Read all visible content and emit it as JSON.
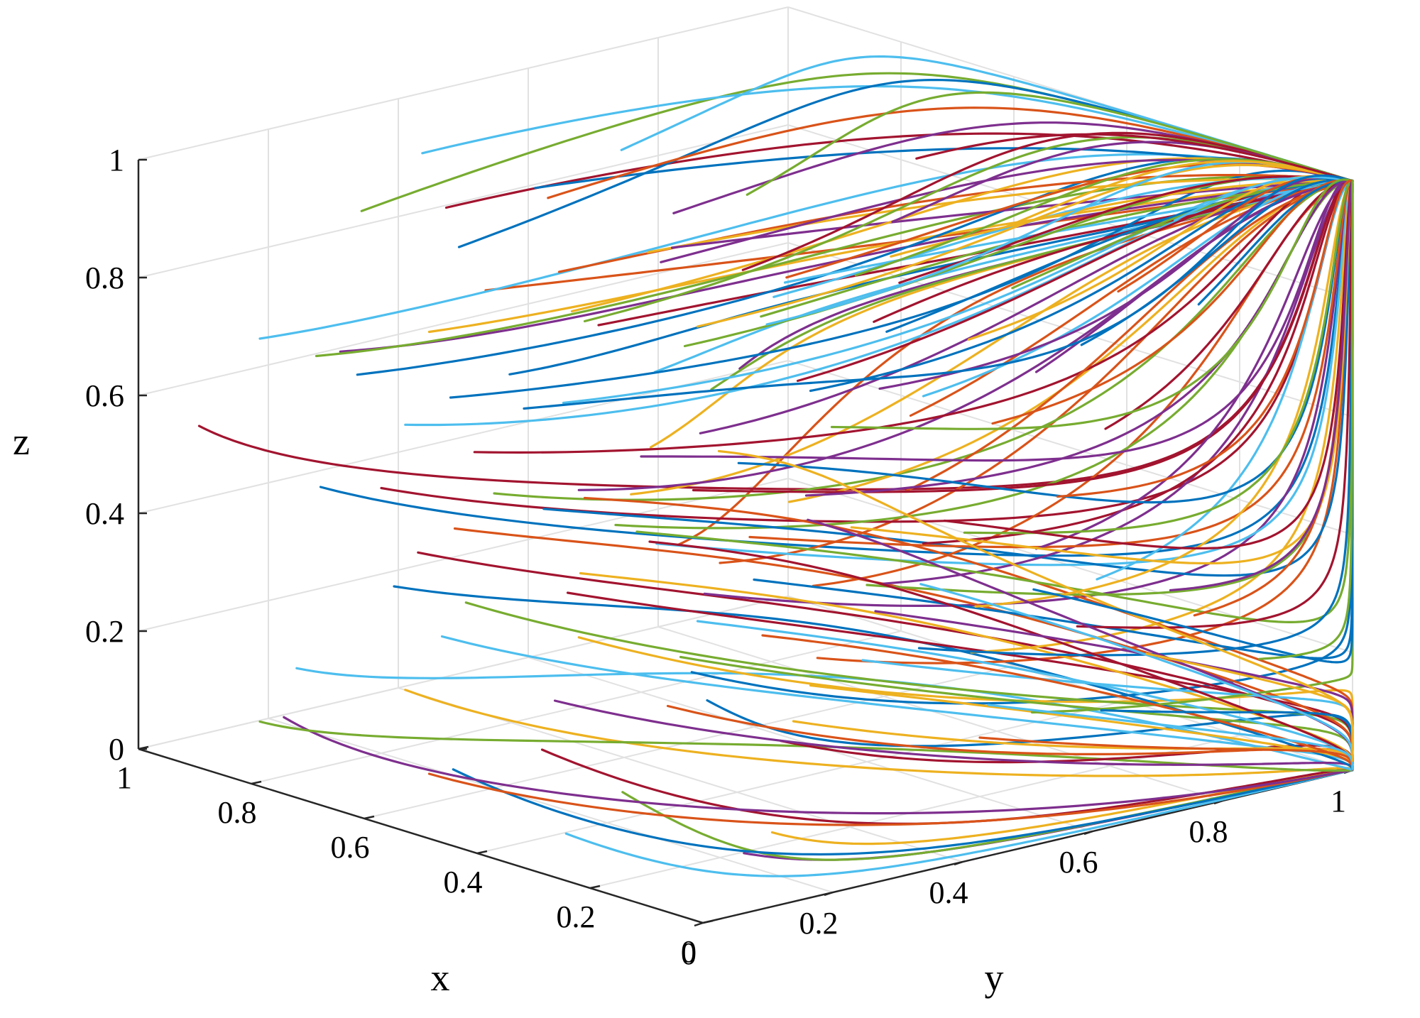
{
  "chart_data": {
    "type": "line",
    "projection": "3d",
    "xlabel": "x",
    "ylabel": "y",
    "zlabel": "z",
    "xlim": [
      0,
      1
    ],
    "ylim": [
      0,
      1
    ],
    "zlim": [
      0,
      1
    ],
    "x_ticks": [
      "0",
      "0.2",
      "0.4",
      "0.6",
      "0.8",
      "1"
    ],
    "y_ticks": [
      "0",
      "0.2",
      "0.4",
      "0.6",
      "0.8",
      "1"
    ],
    "z_ticks": [
      "0",
      "0.2",
      "0.4",
      "0.6",
      "0.8",
      "1"
    ],
    "grid": true,
    "legend": "none",
    "attractors": [
      [
        0,
        1,
        1
      ],
      [
        0,
        1,
        0
      ]
    ],
    "series_colors": [
      "#0072BD",
      "#D95319",
      "#EDB120",
      "#7E2F8E",
      "#77AC30",
      "#4DBEEE",
      "#A2142F"
    ],
    "trajectory_starts": [
      [
        0.05,
        0.05,
        0.35
      ],
      [
        0.1,
        0.05,
        0.6
      ],
      [
        0.15,
        0.05,
        0.75
      ],
      [
        0.05,
        0.1,
        0.9
      ],
      [
        0.1,
        0.1,
        0.85
      ],
      [
        0.2,
        0.1,
        0.85
      ],
      [
        0.3,
        0.1,
        0.9
      ],
      [
        0.4,
        0.05,
        0.8
      ],
      [
        0.5,
        0.1,
        0.9
      ],
      [
        0.6,
        0.1,
        0.8
      ],
      [
        0.7,
        0.05,
        0.75
      ],
      [
        0.8,
        0.1,
        0.7
      ],
      [
        0.9,
        0.1,
        0.7
      ],
      [
        0.95,
        0.05,
        0.55
      ],
      [
        0.85,
        0.15,
        0.45
      ],
      [
        0.2,
        0.2,
        0.5
      ],
      [
        0.3,
        0.15,
        0.6
      ],
      [
        0.45,
        0.2,
        0.55
      ],
      [
        0.6,
        0.2,
        0.5
      ],
      [
        0.7,
        0.15,
        0.6
      ],
      [
        0.8,
        0.2,
        0.45
      ],
      [
        0.9,
        0.25,
        0.6
      ],
      [
        0.15,
        0.3,
        0.45
      ],
      [
        0.25,
        0.35,
        0.55
      ],
      [
        0.35,
        0.3,
        0.65
      ],
      [
        0.5,
        0.3,
        0.45
      ],
      [
        0.65,
        0.35,
        0.6
      ],
      [
        0.75,
        0.3,
        0.5
      ],
      [
        0.85,
        0.35,
        0.55
      ],
      [
        0.1,
        0.4,
        0.6
      ],
      [
        0.05,
        0.15,
        0.1
      ],
      [
        0.1,
        0.15,
        0.05
      ],
      [
        0.2,
        0.05,
        0.15
      ],
      [
        0.3,
        0.05,
        0.05
      ],
      [
        0.4,
        0.1,
        0.15
      ],
      [
        0.5,
        0.05,
        0.1
      ],
      [
        0.6,
        0.1,
        0.05
      ],
      [
        0.7,
        0.15,
        0.15
      ],
      [
        0.8,
        0.05,
        0.1
      ],
      [
        0.9,
        0.1,
        0.05
      ],
      [
        0.95,
        0.2,
        0.1
      ],
      [
        0.15,
        0.25,
        0.2
      ],
      [
        0.25,
        0.2,
        0.3
      ],
      [
        0.35,
        0.25,
        0.2
      ],
      [
        0.45,
        0.2,
        0.3
      ],
      [
        0.55,
        0.25,
        0.15
      ],
      [
        0.65,
        0.2,
        0.3
      ],
      [
        0.75,
        0.25,
        0.2
      ],
      [
        0.85,
        0.3,
        0.3
      ],
      [
        0.95,
        0.35,
        0.2
      ],
      [
        0.2,
        0.35,
        0.3
      ],
      [
        0.3,
        0.4,
        0.15
      ],
      [
        0.4,
        0.35,
        0.35
      ],
      [
        0.5,
        0.4,
        0.2
      ],
      [
        0.6,
        0.45,
        0.35
      ],
      [
        0.7,
        0.4,
        0.25
      ],
      [
        0.8,
        0.45,
        0.35
      ],
      [
        0.9,
        0.4,
        0.3
      ],
      [
        0.1,
        0.5,
        0.3
      ],
      [
        0.2,
        0.45,
        0.4
      ],
      [
        0.95,
        0.3,
        0.85
      ],
      [
        0.9,
        0.35,
        0.95
      ],
      [
        0.8,
        0.3,
        0.9
      ],
      [
        0.7,
        0.35,
        0.95
      ],
      [
        0.6,
        0.3,
        0.85
      ],
      [
        0.5,
        0.35,
        0.9
      ],
      [
        0.4,
        0.3,
        0.95
      ],
      [
        0.3,
        0.35,
        0.85
      ],
      [
        0.2,
        0.3,
        0.95
      ],
      [
        0.1,
        0.35,
        0.9
      ],
      [
        0.95,
        0.45,
        0.75
      ],
      [
        0.85,
        0.5,
        0.85
      ],
      [
        0.75,
        0.45,
        0.7
      ],
      [
        0.65,
        0.5,
        0.8
      ],
      [
        0.55,
        0.45,
        0.7
      ],
      [
        0.45,
        0.5,
        0.8
      ],
      [
        0.35,
        0.45,
        0.7
      ],
      [
        0.25,
        0.5,
        0.8
      ],
      [
        0.15,
        0.45,
        0.7
      ],
      [
        0.3,
        0.55,
        0.9
      ],
      [
        0.1,
        0.6,
        0.75
      ],
      [
        0.2,
        0.65,
        0.85
      ],
      [
        0.3,
        0.6,
        0.65
      ],
      [
        0.4,
        0.65,
        0.8
      ],
      [
        0.5,
        0.6,
        0.6
      ],
      [
        0.6,
        0.65,
        0.75
      ],
      [
        0.7,
        0.6,
        0.65
      ],
      [
        0.8,
        0.65,
        0.8
      ],
      [
        0.9,
        0.6,
        0.6
      ],
      [
        0.95,
        0.7,
        0.85
      ],
      [
        0.15,
        0.75,
        0.6
      ],
      [
        0.25,
        0.8,
        0.7
      ],
      [
        0.35,
        0.75,
        0.55
      ],
      [
        0.45,
        0.8,
        0.65
      ],
      [
        0.55,
        0.75,
        0.55
      ],
      [
        0.65,
        0.8,
        0.7
      ],
      [
        0.75,
        0.75,
        0.6
      ],
      [
        0.85,
        0.8,
        0.65
      ],
      [
        0.1,
        0.85,
        0.8
      ],
      [
        0.3,
        0.9,
        0.75
      ],
      [
        0.5,
        0.9,
        0.8
      ],
      [
        0.7,
        0.9,
        0.75
      ],
      [
        0.9,
        0.85,
        0.75
      ],
      [
        0.2,
        0.9,
        0.9
      ],
      [
        0.6,
        0.85,
        0.9
      ],
      [
        0.95,
        0.55,
        0.45
      ],
      [
        0.9,
        0.6,
        0.3
      ],
      [
        0.85,
        0.55,
        0.2
      ],
      [
        0.8,
        0.6,
        0.4
      ],
      [
        0.75,
        0.55,
        0.3
      ],
      [
        0.7,
        0.6,
        0.15
      ],
      [
        0.65,
        0.55,
        0.4
      ],
      [
        0.6,
        0.6,
        0.25
      ],
      [
        0.55,
        0.55,
        0.35
      ],
      [
        0.5,
        0.6,
        0.1
      ],
      [
        0.45,
        0.55,
        0.45
      ],
      [
        0.4,
        0.6,
        0.3
      ],
      [
        0.35,
        0.55,
        0.2
      ],
      [
        0.3,
        0.6,
        0.4
      ],
      [
        0.25,
        0.55,
        0.25
      ],
      [
        0.2,
        0.6,
        0.1
      ],
      [
        0.15,
        0.55,
        0.35
      ],
      [
        0.1,
        0.6,
        0.45
      ],
      [
        0.05,
        0.55,
        0.2
      ],
      [
        0.05,
        0.65,
        0.4
      ],
      [
        0.9,
        0.7,
        0.2
      ],
      [
        0.8,
        0.75,
        0.35
      ],
      [
        0.7,
        0.7,
        0.1
      ],
      [
        0.6,
        0.75,
        0.3
      ],
      [
        0.5,
        0.7,
        0.2
      ],
      [
        0.4,
        0.75,
        0.35
      ],
      [
        0.3,
        0.7,
        0.1
      ],
      [
        0.2,
        0.75,
        0.25
      ],
      [
        0.1,
        0.7,
        0.15
      ],
      [
        0.05,
        0.8,
        0.3
      ],
      [
        0.95,
        0.85,
        0.3
      ],
      [
        0.85,
        0.9,
        0.2
      ],
      [
        0.75,
        0.85,
        0.4
      ],
      [
        0.65,
        0.9,
        0.15
      ],
      [
        0.55,
        0.85,
        0.3
      ],
      [
        0.45,
        0.9,
        0.2
      ],
      [
        0.35,
        0.85,
        0.4
      ],
      [
        0.25,
        0.9,
        0.15
      ],
      [
        0.15,
        0.85,
        0.3
      ],
      [
        0.05,
        0.9,
        0.2
      ]
    ]
  }
}
